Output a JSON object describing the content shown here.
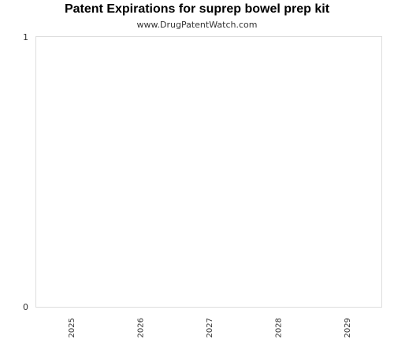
{
  "chart_data": {
    "type": "bar",
    "title": "Patent Expirations for suprep bowel prep kit",
    "subtitle": "www.DrugPatentWatch.com",
    "categories": [
      "2025",
      "2026",
      "2027",
      "2028",
      "2029"
    ],
    "values": [
      0,
      0,
      0,
      0,
      0
    ],
    "xlabel": "",
    "ylabel": "",
    "ylim": [
      0,
      1
    ],
    "yticks": [
      "0",
      "1"
    ],
    "grid": false,
    "legend": "none",
    "colors": {
      "plot_border": "#dddddd",
      "axis_text": "#333333",
      "background": "#ffffff"
    }
  }
}
